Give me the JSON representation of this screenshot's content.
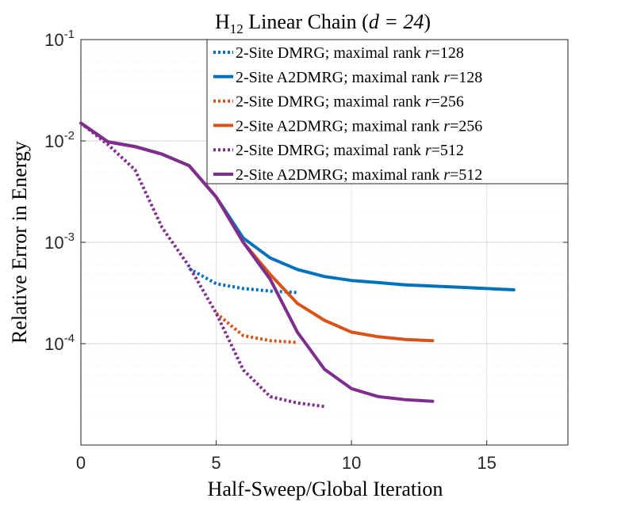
{
  "chart_data": {
    "type": "line",
    "title": "H",
    "title_sub": "12",
    "title_rest": " Linear Chain (",
    "title_math": "d = 24",
    "title_close": ")",
    "xlabel": "Half-Sweep/Global Iteration",
    "ylabel": "Relative Error in Energy",
    "xlim": [
      0,
      18
    ],
    "ylim": [
      1e-05,
      0.1
    ],
    "yscale": "log",
    "grid": true,
    "legend_position": "top-right",
    "x_ticks": [
      {
        "value": 0,
        "label": "0"
      },
      {
        "value": 5,
        "label": "5"
      },
      {
        "value": 10,
        "label": "10"
      },
      {
        "value": 15,
        "label": "15"
      }
    ],
    "y_ticks": [
      {
        "value": 0.0001,
        "base": "10",
        "exp": "-4"
      },
      {
        "value": 0.001,
        "base": "10",
        "exp": "-3"
      },
      {
        "value": 0.01,
        "base": "10",
        "exp": "-2"
      },
      {
        "value": 0.1,
        "base": "10",
        "exp": "-1"
      }
    ],
    "series": [
      {
        "id": "dmrg-128",
        "name": "2-Site DMRG; maximal rank ",
        "rank_var": "r",
        "rank_value": "=128",
        "color": "#0072BD",
        "dashed": true,
        "x": [
          4,
          5,
          6,
          7,
          8
        ],
        "y": [
          0.00055,
          0.00039,
          0.00035,
          0.00033,
          0.00032
        ]
      },
      {
        "id": "a2dmrg-128",
        "name": "2-Site A2DMRG; maximal rank ",
        "rank_var": "r",
        "rank_value": "=128",
        "color": "#0072BD",
        "dashed": false,
        "x": [
          0,
          1,
          2,
          3,
          4,
          5,
          6,
          7,
          8,
          9,
          10,
          11,
          12,
          13,
          14,
          15,
          16
        ],
        "y": [
          0.015,
          0.0098,
          0.0088,
          0.0074,
          0.0057,
          0.0028,
          0.0011,
          0.0007,
          0.00054,
          0.00046,
          0.00042,
          0.0004,
          0.00038,
          0.00037,
          0.00036,
          0.00035,
          0.00034
        ]
      },
      {
        "id": "dmrg-256",
        "name": "2-Site DMRG; maximal rank ",
        "rank_var": "r",
        "rank_value": "=256",
        "color": "#D95319",
        "dashed": true,
        "x": [
          5,
          6,
          7,
          8
        ],
        "y": [
          0.0002,
          0.00012,
          0.000107,
          0.000103
        ]
      },
      {
        "id": "a2dmrg-256",
        "name": "2-Site A2DMRG; maximal rank ",
        "rank_var": "r",
        "rank_value": "=256",
        "color": "#D95319",
        "dashed": false,
        "x": [
          0,
          1,
          2,
          3,
          4,
          5,
          6,
          7,
          8,
          9,
          10,
          11,
          12,
          13
        ],
        "y": [
          0.015,
          0.0098,
          0.0088,
          0.0074,
          0.0057,
          0.0028,
          0.001,
          0.00048,
          0.00025,
          0.00017,
          0.00013,
          0.000117,
          0.00011,
          0.000107
        ]
      },
      {
        "id": "dmrg-512",
        "name": "2-Site DMRG; maximal rank ",
        "rank_var": "r",
        "rank_value": "=512",
        "color": "#7E2F8E",
        "dashed": true,
        "x": [
          0,
          1,
          2,
          3,
          4,
          5,
          6,
          7,
          8,
          9
        ],
        "y": [
          0.015,
          0.0092,
          0.0052,
          0.0014,
          0.00058,
          0.0002,
          5.5e-05,
          3e-05,
          2.6e-05,
          2.4e-05
        ]
      },
      {
        "id": "a2dmrg-512",
        "name": "2-Site A2DMRG; maximal rank ",
        "rank_var": "r",
        "rank_value": "=512",
        "color": "#7E2F8E",
        "dashed": false,
        "x": [
          0,
          1,
          2,
          3,
          4,
          5,
          6,
          7,
          8,
          9,
          10,
          11,
          12,
          13
        ],
        "y": [
          0.015,
          0.0098,
          0.0088,
          0.0074,
          0.0057,
          0.0028,
          0.001,
          0.00043,
          0.00013,
          5.6e-05,
          3.6e-05,
          3e-05,
          2.8e-05,
          2.7e-05
        ]
      }
    ]
  }
}
